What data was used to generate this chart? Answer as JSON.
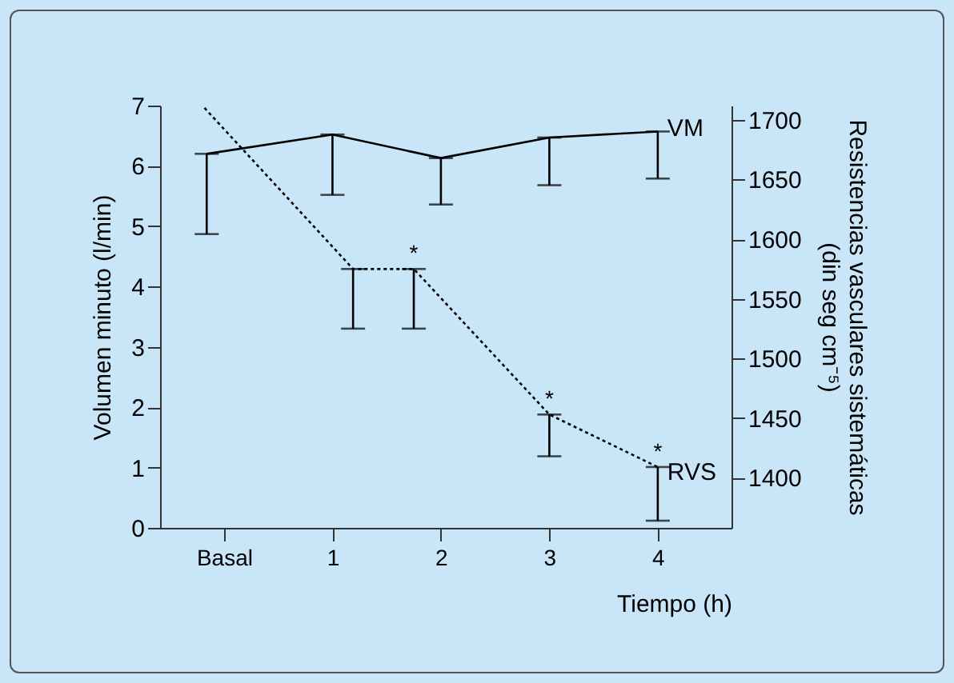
{
  "chart_data": {
    "type": "line",
    "xlabel": "Tiempo (h)",
    "ylabel": "Volumen minuto (l/min)",
    "y2label": "Resistencias vasculares sistemáticas\n(din seg cm⁻⁵)",
    "xlim": [
      -0.59,
      4.68
    ],
    "xticks": [
      {
        "value": 0,
        "label": "Basal"
      },
      1,
      2,
      3,
      4
    ],
    "ylim": [
      0,
      7
    ],
    "yticks": [
      0,
      1,
      2,
      3,
      4,
      5,
      6,
      7
    ],
    "y2lim": [
      1358,
      1712
    ],
    "y2ticks": [
      1400,
      1450,
      1500,
      1550,
      1600,
      1650,
      1700
    ],
    "marker": "none",
    "grid": false,
    "series": [
      {
        "name": "VM",
        "color": "#000000",
        "line_style": "solid",
        "x": [
          -0.16,
          1,
          2,
          3,
          4
        ],
        "values": [
          6.2,
          6.52,
          6.13,
          6.47,
          6.57
        ],
        "errors": [
          [
            4.87,
            6.2
          ],
          [
            5.52,
            6.52
          ],
          [
            5.36,
            6.13
          ],
          [
            5.68,
            6.47
          ],
          [
            5.79,
            6.57
          ]
        ]
      },
      {
        "name": "RVS",
        "color": "#000000",
        "line_style": "dotted",
        "axis": "y2",
        "x": [
          -0.18,
          1.19,
          1.75,
          3,
          4
        ],
        "values": [
          1710,
          1575,
          1575,
          1453,
          1409
        ],
        "value_labels": [
          null,
          null,
          "*",
          "*",
          "*"
        ],
        "errors": [
          null,
          [
            1525,
            1575
          ],
          [
            1525,
            1575
          ],
          [
            1418,
            1453
          ],
          [
            1364,
            1409
          ]
        ]
      }
    ]
  }
}
